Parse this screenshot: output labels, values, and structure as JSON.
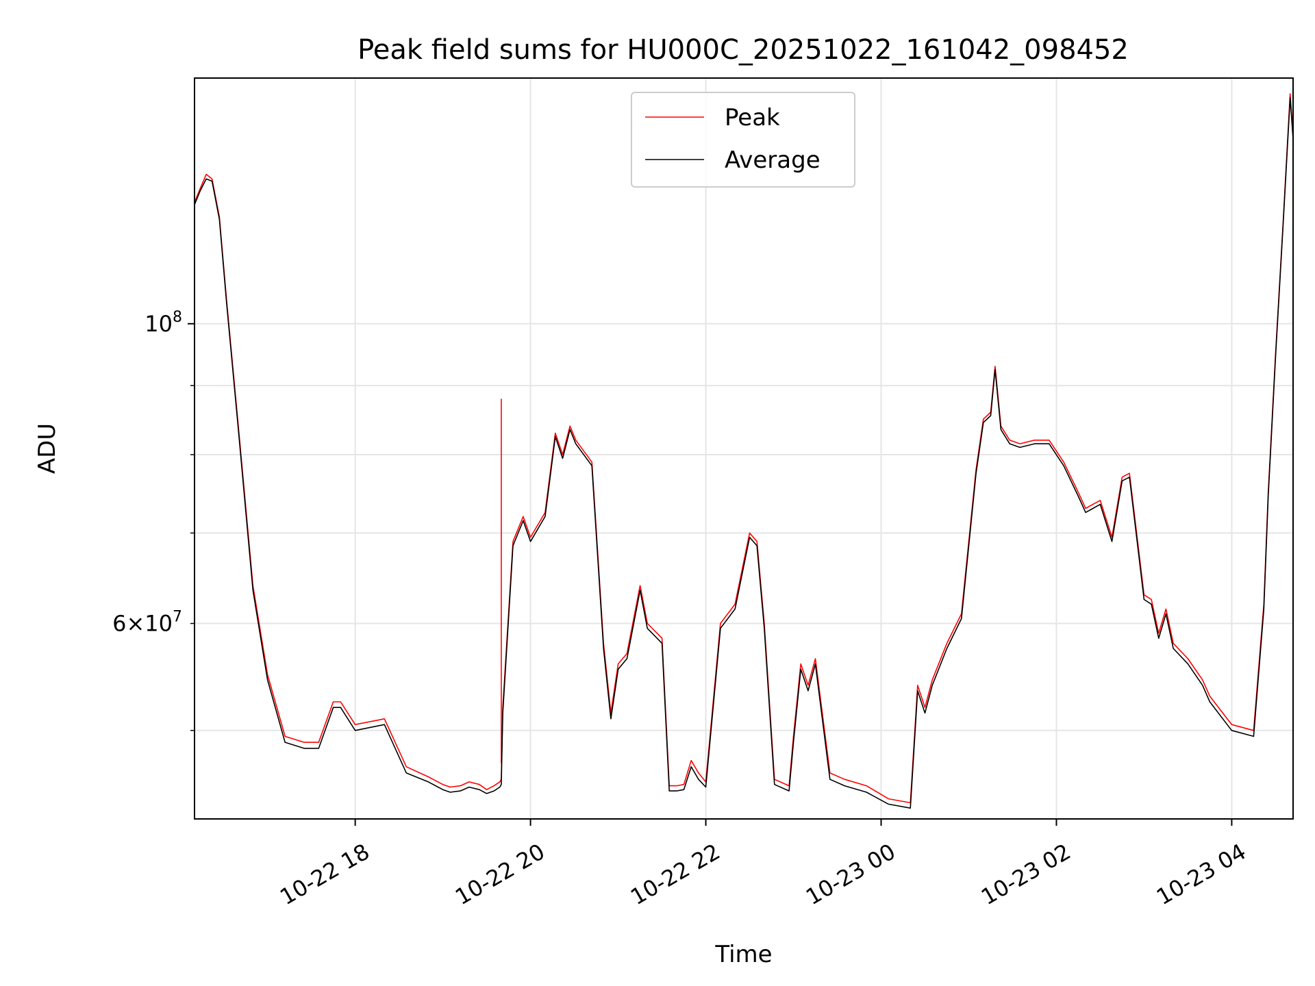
{
  "chart_data": {
    "type": "line",
    "title": "Peak field sums for HU000C_20251022_161042_098452",
    "xlabel": "Time",
    "ylabel": "ADU",
    "y_scale": "log",
    "ylim": [
      43000000,
      152000000
    ],
    "xlim": [
      "2025-10-22 16:10",
      "2025-10-23 04:42"
    ],
    "x_tick_labels": [
      "10-22 18",
      "10-22 20",
      "10-22 22",
      "10-23 00",
      "10-23 02",
      "10-23 04"
    ],
    "x_ticks": [
      "2025-10-22 18:00",
      "2025-10-22 20:00",
      "2025-10-22 22:00",
      "2025-10-23 00:00",
      "2025-10-23 02:00",
      "2025-10-23 04:00"
    ],
    "y_major_tick_labels": [
      {
        "value": 100000000,
        "base": "10",
        "exp": "8"
      }
    ],
    "y_minor_tick_labels": [
      {
        "value": 60000000,
        "mant": "6",
        "base": "10",
        "exp": "7"
      }
    ],
    "y_minor_ticks": [
      50000000,
      60000000,
      70000000,
      80000000,
      90000000
    ],
    "grid": true,
    "legend_position": "top-center",
    "series": [
      {
        "name": "Peak",
        "color": "#ff0000",
        "x": [
          "2025-10-22 16:10",
          "2025-10-22 16:14",
          "2025-10-22 16:18",
          "2025-10-22 16:22",
          "2025-10-22 16:27",
          "2025-10-22 16:32",
          "2025-10-22 16:40",
          "2025-10-22 16:50",
          "2025-10-22 17:00",
          "2025-10-22 17:12",
          "2025-10-22 17:25",
          "2025-10-22 17:35",
          "2025-10-22 17:45",
          "2025-10-22 17:50",
          "2025-10-22 18:00",
          "2025-10-22 18:20",
          "2025-10-22 18:35",
          "2025-10-22 18:50",
          "2025-10-22 19:00",
          "2025-10-22 19:05",
          "2025-10-22 19:12",
          "2025-10-22 19:18",
          "2025-10-22 19:25",
          "2025-10-22 19:30",
          "2025-10-22 19:35",
          "2025-10-22 19:39",
          "2025-10-22 19:40",
          "2025-10-22 19:41",
          "2025-10-22 19:48",
          "2025-10-22 19:55",
          "2025-10-22 20:00",
          "2025-10-22 20:10",
          "2025-10-22 20:17",
          "2025-10-22 20:22",
          "2025-10-22 20:27",
          "2025-10-22 20:31",
          "2025-10-22 20:42",
          "2025-10-22 20:50",
          "2025-10-22 20:55",
          "2025-10-22 21:00",
          "2025-10-22 21:06",
          "2025-10-22 21:15",
          "2025-10-22 21:20",
          "2025-10-22 21:30",
          "2025-10-22 21:35",
          "2025-10-22 21:40",
          "2025-10-22 21:45",
          "2025-10-22 21:50",
          "2025-10-22 21:55",
          "2025-10-22 22:00",
          "2025-10-22 22:10",
          "2025-10-22 22:20",
          "2025-10-22 22:30",
          "2025-10-22 22:35",
          "2025-10-22 22:40",
          "2025-10-22 22:47",
          "2025-10-22 22:57",
          "2025-10-22 23:00",
          "2025-10-22 23:05",
          "2025-10-22 23:10",
          "2025-10-22 23:15",
          "2025-10-22 23:25",
          "2025-10-22 23:35",
          "2025-10-22 23:50",
          "2025-10-23 00:05",
          "2025-10-23 00:20",
          "2025-10-23 00:25",
          "2025-10-23 00:30",
          "2025-10-23 00:35",
          "2025-10-23 00:45",
          "2025-10-23 00:55",
          "2025-10-23 01:05",
          "2025-10-23 01:10",
          "2025-10-23 01:15",
          "2025-10-23 01:18",
          "2025-10-23 01:22",
          "2025-10-23 01:28",
          "2025-10-23 01:35",
          "2025-10-23 01:45",
          "2025-10-23 01:55",
          "2025-10-23 02:05",
          "2025-10-23 02:15",
          "2025-10-23 02:20",
          "2025-10-23 02:25",
          "2025-10-23 02:30",
          "2025-10-23 02:38",
          "2025-10-23 02:45",
          "2025-10-23 02:50",
          "2025-10-23 03:00",
          "2025-10-23 03:05",
          "2025-10-23 03:10",
          "2025-10-23 03:15",
          "2025-10-23 03:20",
          "2025-10-23 03:30",
          "2025-10-23 03:40",
          "2025-10-23 03:45",
          "2025-10-23 04:00",
          "2025-10-23 04:15",
          "2025-10-23 04:22",
          "2025-10-23 04:25",
          "2025-10-23 04:30",
          "2025-10-23 04:35",
          "2025-10-23 04:40",
          "2025-10-23 04:42"
        ],
        "y": [
          123000000,
          126000000,
          129000000,
          128000000,
          120000000,
          104000000,
          84000000,
          64000000,
          55000000,
          49500000,
          49000000,
          49000000,
          52500000,
          52500000,
          50500000,
          51000000,
          47000000,
          46200000,
          45600000,
          45400000,
          45500000,
          45800000,
          45600000,
          45200000,
          45500000,
          45800000,
          46000000,
          52000000,
          69000000,
          72000000,
          69500000,
          72500000,
          83000000,
          80000000,
          84000000,
          82000000,
          79000000,
          58000000,
          51500000,
          56000000,
          57000000,
          64000000,
          60000000,
          58500000,
          45500000,
          45500000,
          45600000,
          47500000,
          46500000,
          45800000,
          60000000,
          62000000,
          70000000,
          69000000,
          60000000,
          46000000,
          45500000,
          49500000,
          56000000,
          54000000,
          56500000,
          46500000,
          46000000,
          45500000,
          44500000,
          44200000,
          54000000,
          52000000,
          54500000,
          58000000,
          61000000,
          78000000,
          85000000,
          86000000,
          93000000,
          84000000,
          82000000,
          81500000,
          82000000,
          82000000,
          79000000,
          75000000,
          73000000,
          73500000,
          74000000,
          69500000,
          77000000,
          77500000,
          63000000,
          62500000,
          59000000,
          61500000,
          58000000,
          56500000,
          54500000,
          53000000,
          50500000,
          50000000,
          62000000,
          75000000,
          95000000,
          118000000,
          148000000,
          138000000
        ],
        "spikes": [
          {
            "x": "2025-10-22 19:40",
            "y": 88000000
          }
        ]
      },
      {
        "name": "Average",
        "color": "#000000",
        "x": [
          "2025-10-22 16:10",
          "2025-10-22 16:14",
          "2025-10-22 16:18",
          "2025-10-22 16:22",
          "2025-10-22 16:27",
          "2025-10-22 16:32",
          "2025-10-22 16:40",
          "2025-10-22 16:50",
          "2025-10-22 17:00",
          "2025-10-22 17:12",
          "2025-10-22 17:25",
          "2025-10-22 17:35",
          "2025-10-22 17:45",
          "2025-10-22 17:50",
          "2025-10-22 18:00",
          "2025-10-22 18:20",
          "2025-10-22 18:35",
          "2025-10-22 18:50",
          "2025-10-22 19:00",
          "2025-10-22 19:05",
          "2025-10-22 19:12",
          "2025-10-22 19:18",
          "2025-10-22 19:25",
          "2025-10-22 19:30",
          "2025-10-22 19:35",
          "2025-10-22 19:39",
          "2025-10-22 19:40",
          "2025-10-22 19:41",
          "2025-10-22 19:48",
          "2025-10-22 19:55",
          "2025-10-22 20:00",
          "2025-10-22 20:10",
          "2025-10-22 20:17",
          "2025-10-22 20:22",
          "2025-10-22 20:27",
          "2025-10-22 20:31",
          "2025-10-22 20:42",
          "2025-10-22 20:50",
          "2025-10-22 20:55",
          "2025-10-22 21:00",
          "2025-10-22 21:06",
          "2025-10-22 21:15",
          "2025-10-22 21:20",
          "2025-10-22 21:30",
          "2025-10-22 21:35",
          "2025-10-22 21:40",
          "2025-10-22 21:45",
          "2025-10-22 21:50",
          "2025-10-22 21:55",
          "2025-10-22 22:00",
          "2025-10-22 22:10",
          "2025-10-22 22:20",
          "2025-10-22 22:30",
          "2025-10-22 22:35",
          "2025-10-22 22:40",
          "2025-10-22 22:47",
          "2025-10-22 22:57",
          "2025-10-22 23:00",
          "2025-10-22 23:05",
          "2025-10-22 23:10",
          "2025-10-22 23:15",
          "2025-10-22 23:25",
          "2025-10-22 23:35",
          "2025-10-22 23:50",
          "2025-10-23 00:05",
          "2025-10-23 00:20",
          "2025-10-23 00:25",
          "2025-10-23 00:30",
          "2025-10-23 00:35",
          "2025-10-23 00:45",
          "2025-10-23 00:55",
          "2025-10-23 01:05",
          "2025-10-23 01:10",
          "2025-10-23 01:15",
          "2025-10-23 01:18",
          "2025-10-23 01:22",
          "2025-10-23 01:28",
          "2025-10-23 01:35",
          "2025-10-23 01:45",
          "2025-10-23 01:55",
          "2025-10-23 02:05",
          "2025-10-23 02:15",
          "2025-10-23 02:20",
          "2025-10-23 02:25",
          "2025-10-23 02:30",
          "2025-10-23 02:38",
          "2025-10-23 02:45",
          "2025-10-23 02:50",
          "2025-10-23 03:00",
          "2025-10-23 03:05",
          "2025-10-23 03:10",
          "2025-10-23 03:15",
          "2025-10-23 03:20",
          "2025-10-23 03:30",
          "2025-10-23 03:40",
          "2025-10-23 03:45",
          "2025-10-23 04:00",
          "2025-10-23 04:15",
          "2025-10-23 04:22",
          "2025-10-23 04:25",
          "2025-10-23 04:30",
          "2025-10-23 04:35",
          "2025-10-23 04:40",
          "2025-10-23 04:42"
        ],
        "y": [
          122500000,
          125500000,
          128000000,
          127500000,
          119500000,
          103500000,
          83500000,
          63500000,
          54500000,
          49000000,
          48500000,
          48500000,
          52000000,
          52000000,
          50000000,
          50500000,
          46500000,
          45800000,
          45200000,
          45000000,
          45100000,
          45400000,
          45200000,
          44900000,
          45100000,
          45400000,
          45600000,
          51500000,
          68500000,
          71500000,
          69000000,
          72000000,
          82500000,
          79500000,
          83500000,
          81500000,
          78500000,
          57500000,
          51000000,
          55500000,
          56500000,
          63500000,
          59500000,
          58000000,
          45100000,
          45100000,
          45200000,
          47000000,
          46000000,
          45400000,
          59500000,
          61500000,
          69500000,
          68500000,
          59500000,
          45600000,
          45100000,
          49000000,
          55500000,
          53500000,
          56000000,
          46000000,
          45500000,
          45000000,
          44100000,
          43800000,
          53500000,
          51500000,
          54000000,
          57500000,
          60500000,
          77500000,
          84500000,
          85500000,
          92500000,
          83500000,
          81500000,
          81000000,
          81500000,
          81500000,
          78500000,
          74500000,
          72500000,
          73000000,
          73500000,
          69000000,
          76500000,
          77000000,
          62500000,
          62000000,
          58500000,
          61000000,
          57500000,
          56000000,
          54000000,
          52500000,
          50000000,
          49500000,
          61500000,
          74500000,
          94500000,
          117500000,
          147000000,
          137000000
        ]
      }
    ]
  }
}
